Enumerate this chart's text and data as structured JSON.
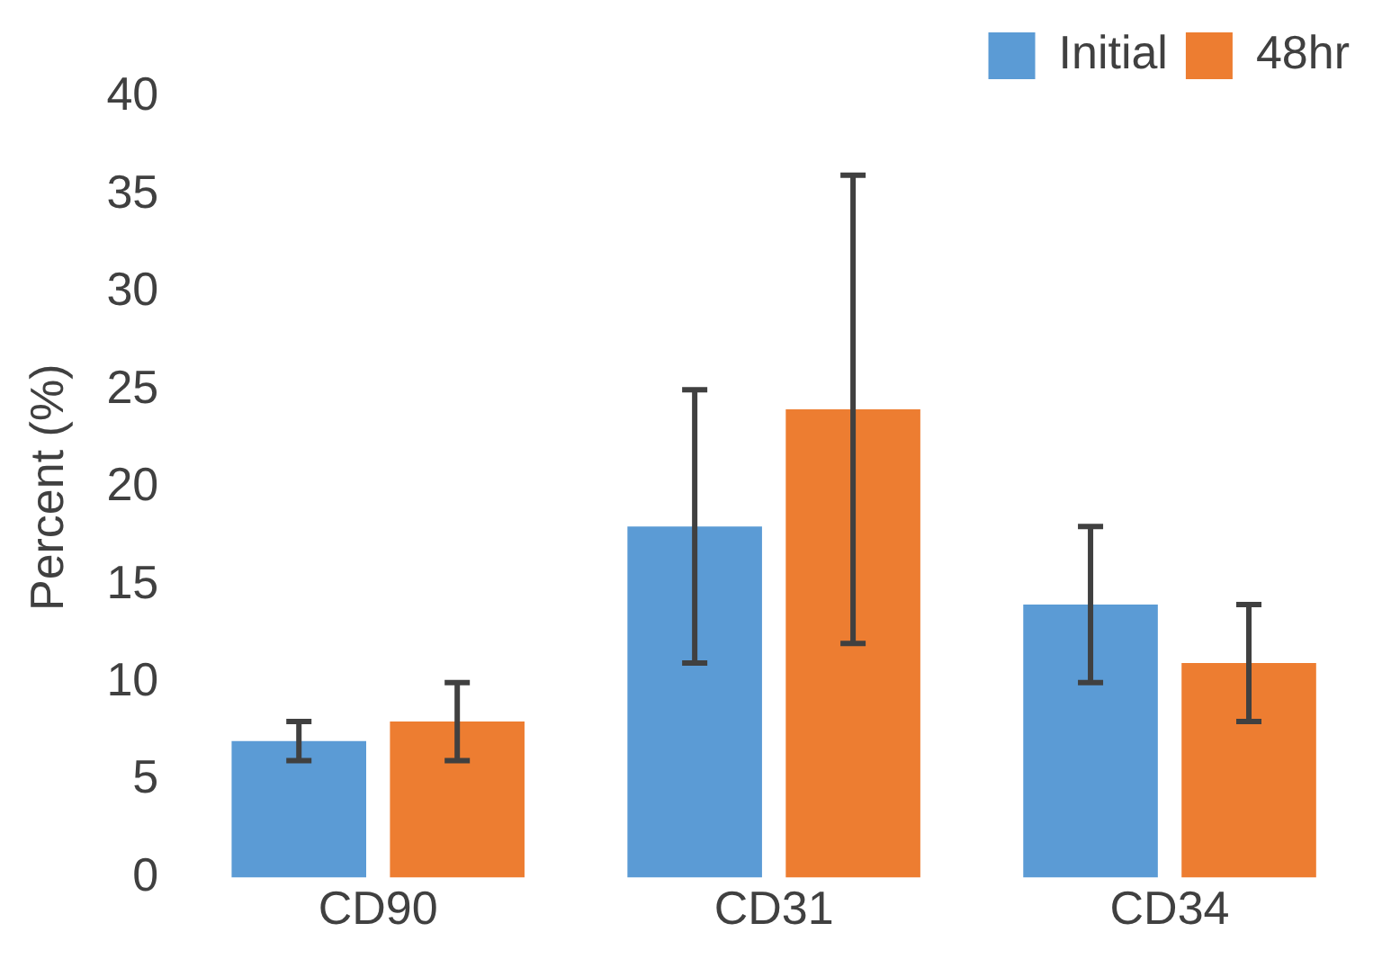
{
  "chart_data": {
    "type": "bar",
    "ylabel": "Percent (%)",
    "categories": [
      "CD90",
      "CD31",
      "CD34"
    ],
    "series": [
      {
        "name": "Initial",
        "color": "#5b9bd5",
        "values": [
          7,
          18,
          14
        ],
        "errors": [
          [
            6,
            8
          ],
          [
            11,
            25
          ],
          [
            10,
            18
          ]
        ]
      },
      {
        "name": "48hr",
        "color": "#ed7d31",
        "values": [
          8,
          24,
          11
        ],
        "errors": [
          [
            6,
            10
          ],
          [
            12,
            36
          ],
          [
            8,
            14
          ]
        ]
      }
    ],
    "ylim": [
      0,
      40
    ],
    "yticks": [
      0,
      5,
      10,
      15,
      20,
      25,
      30,
      35,
      40
    ],
    "grid": false,
    "legend": "top right"
  }
}
